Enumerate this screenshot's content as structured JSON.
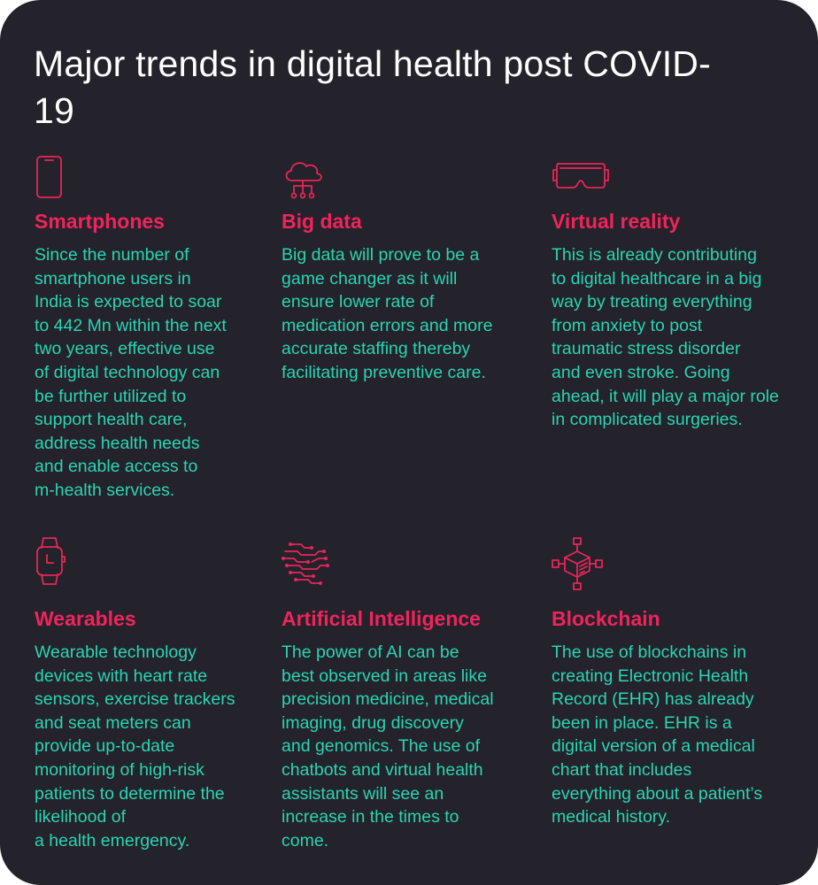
{
  "title": "Major trends in digital health post COVID-19",
  "accent_color": "#f0245d",
  "text_color": "#2ad5b4",
  "background_color": "#24222a",
  "trends": [
    {
      "icon": "smartphone-icon",
      "heading": "Smartphones",
      "body": "Since the number of\nsmartphone users in\nIndia is expected to soar\nto 442 Mn within the next\ntwo years, effective use\nof digital technology can\nbe further utilized to\nsupport health care,\naddress health needs\nand enable access to\nm-health services."
    },
    {
      "icon": "cloud-network-icon",
      "heading": "Big data",
      "body": "Big data will prove to be a\ngame changer as it will\nensure lower rate of\nmedication errors and more\naccurate staffing thereby\nfacilitating preventive care."
    },
    {
      "icon": "vr-headset-icon",
      "heading": "Virtual reality",
      "body": "This is already contributing\nto digital healthcare in a big\nway by treating everything\nfrom anxiety to post\ntraumatic stress disorder\nand even stroke. Going\nahead, it will play a major role\nin complicated surgeries."
    },
    {
      "icon": "smartwatch-icon",
      "heading": "Wearables",
      "body": "Wearable technology\ndevices with heart rate\nsensors, exercise trackers\nand seat meters can\nprovide up-to-date\nmonitoring of high-risk\npatients to determine the\nlikelihood of\na health emergency."
    },
    {
      "icon": "ai-circuit-brain-icon",
      "heading": "Artificial Intelligence",
      "body": "The power of AI can be\nbest observed in areas like\nprecision medicine, medical\nimaging, drug discovery\nand genomics. The use of\nchatbots and virtual health\nassistants will see an\nincrease in the times to\ncome."
    },
    {
      "icon": "blockchain-cube-icon",
      "heading": "Blockchain",
      "body": "The use of blockchains in\ncreating Electronic Health\nRecord (EHR) has already\nbeen in place. EHR is a\ndigital version of a medical\nchart that includes\neverything about a patient’s\nmedical history."
    }
  ]
}
